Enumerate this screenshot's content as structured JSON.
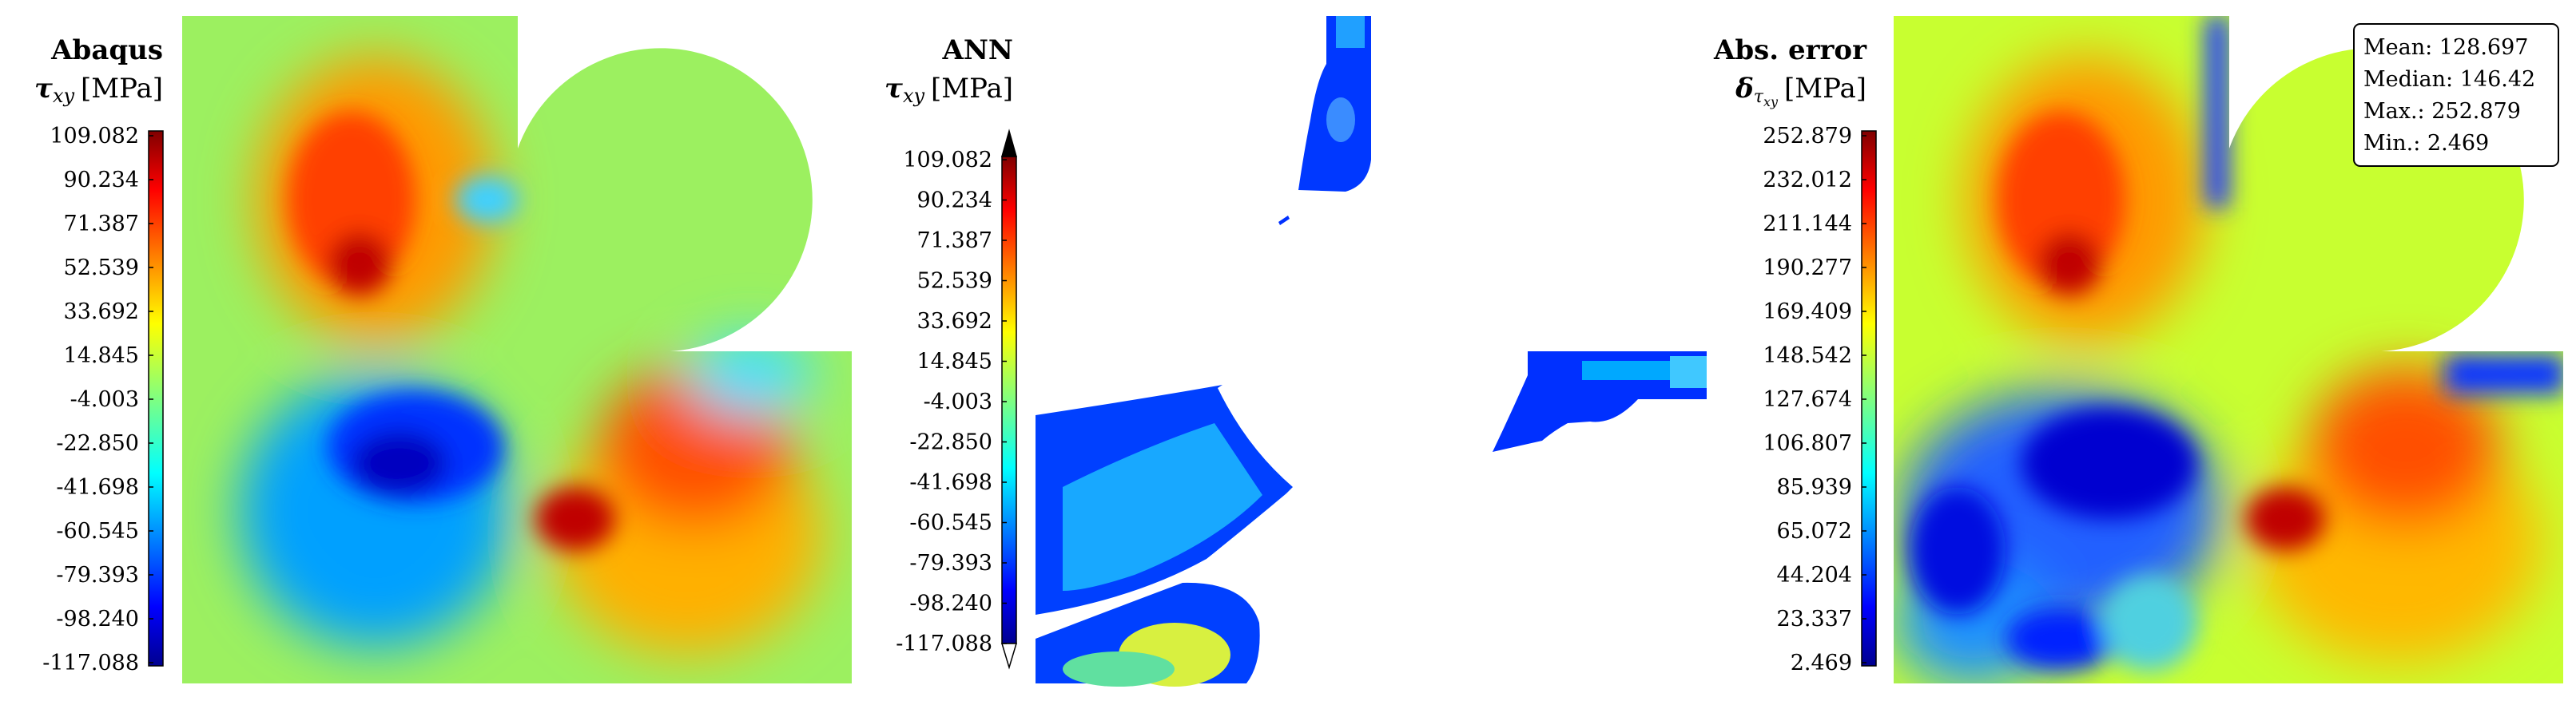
{
  "panels": [
    {
      "title": "Abaqus",
      "quantity_symbol": "τ",
      "quantity_subscript": "xy",
      "unit": "[MPa]",
      "ticks": [
        "109.082",
        "90.234",
        "71.387",
        "52.539",
        "33.692",
        "14.845",
        "-4.003",
        "-22.850",
        "-41.698",
        "-60.545",
        "-79.393",
        "-98.240",
        "-117.088"
      ],
      "range": [
        -117.088,
        109.082
      ],
      "colormap": "jet",
      "extend_arrows": false
    },
    {
      "title": "ANN",
      "quantity_symbol": "τ",
      "quantity_subscript": "xy",
      "unit": "[MPa]",
      "ticks": [
        "109.082",
        "90.234",
        "71.387",
        "52.539",
        "33.692",
        "14.845",
        "-4.003",
        "-22.850",
        "-41.698",
        "-60.545",
        "-79.393",
        "-98.240",
        "-117.088"
      ],
      "range": [
        -117.088,
        109.082
      ],
      "colormap": "jet",
      "extend_arrows": true
    },
    {
      "title": "Abs. error",
      "quantity_symbol": "δ",
      "quantity_subscript": "τ",
      "quantity_subsubscript": "xy",
      "unit": "[MPa]",
      "ticks": [
        "252.879",
        "232.012",
        "211.144",
        "190.277",
        "169.409",
        "148.542",
        "127.674",
        "106.807",
        "85.939",
        "65.072",
        "44.204",
        "23.337",
        "2.469"
      ],
      "range": [
        2.469,
        252.879
      ],
      "colormap": "jet",
      "extend_arrows": false
    }
  ],
  "stats": {
    "mean": "Mean: 128.697",
    "median": "Median: 146.42",
    "max": "Max.: 252.879",
    "min": "Min.: 2.469"
  },
  "colors": {
    "jet_dark_red": "#800000",
    "jet_red": "#ff0000",
    "jet_yellow": "#ffff00",
    "jet_cyan": "#00ffff",
    "jet_blue": "#0000ff",
    "jet_dark_blue": "#00008f",
    "background_green": "#9cf060"
  }
}
